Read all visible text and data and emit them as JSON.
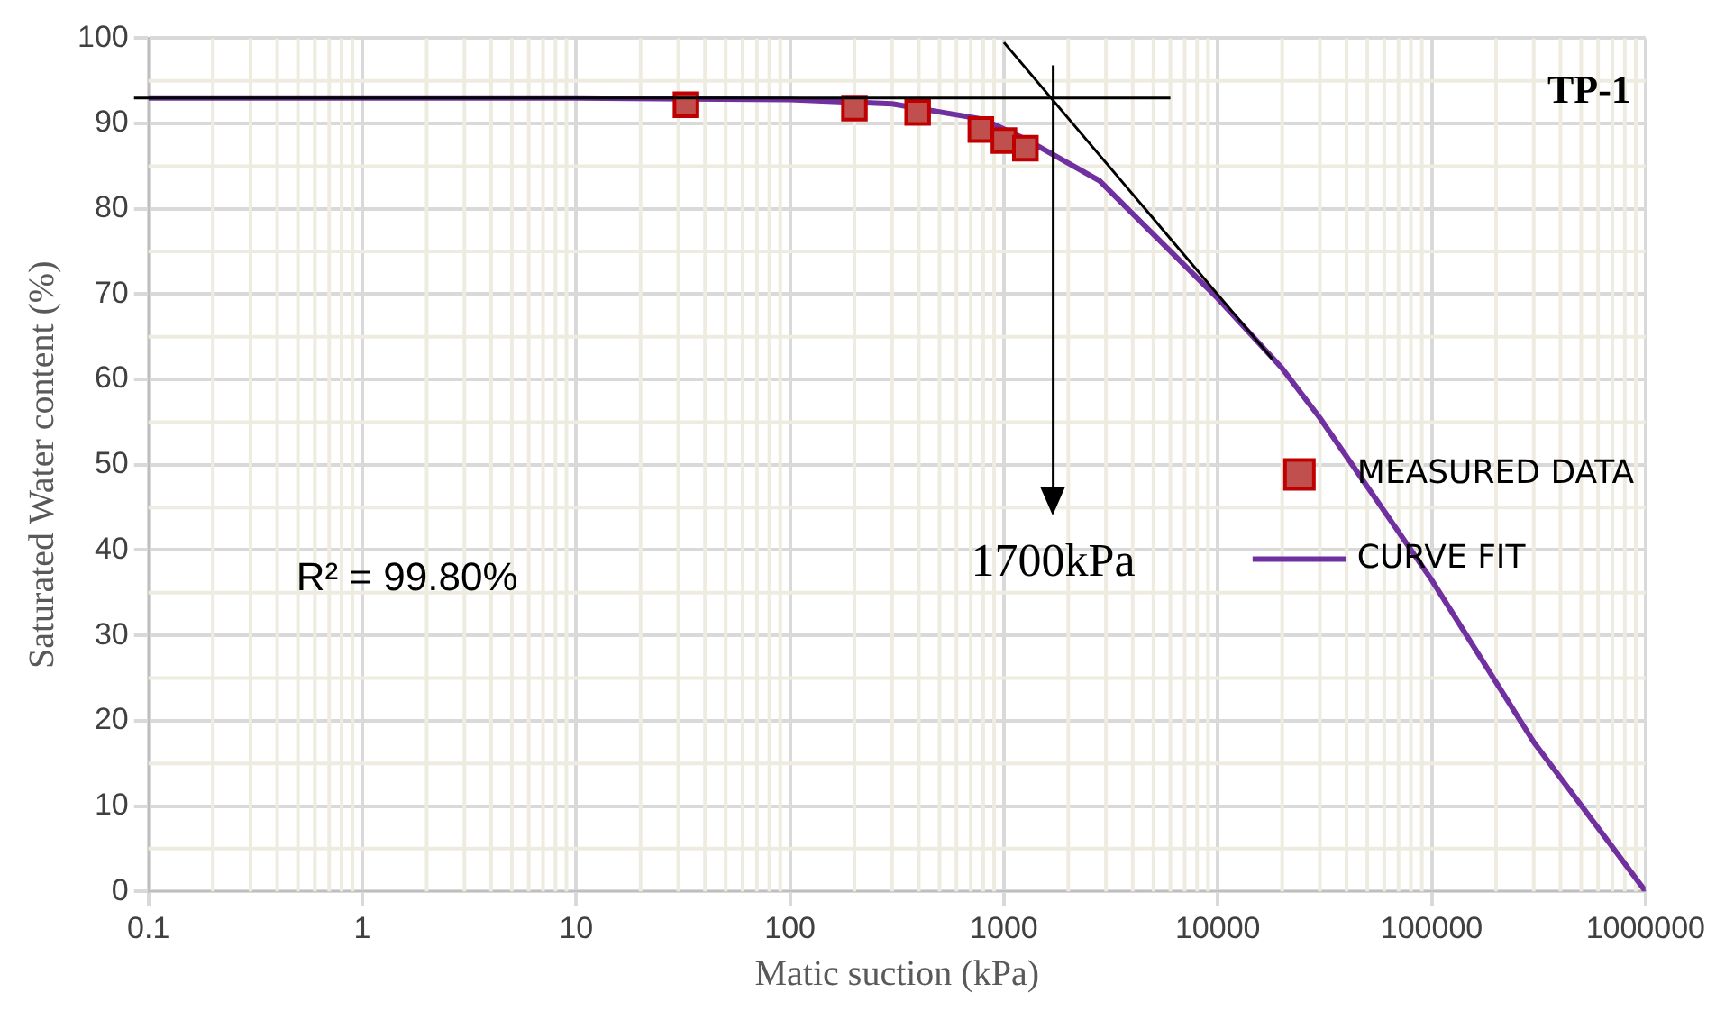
{
  "chart_data": {
    "type": "scatter",
    "xlabel": "Matic suction (kPa)",
    "ylabel": "Saturated Water content (%)",
    "log": "x",
    "xlim": [
      0.1,
      1000000
    ],
    "xticks": [
      0.1,
      1,
      10,
      100,
      1000,
      10000,
      100000,
      1000000
    ],
    "ylim": [
      0,
      100
    ],
    "yticks": [
      0,
      10,
      20,
      30,
      40,
      50,
      60,
      70,
      80,
      90,
      100
    ],
    "grid": true,
    "legend": "right",
    "series": [
      {
        "name": "MEASURED DATA",
        "marker": "square",
        "color": "#c0504d",
        "x": [
          32.6,
          200,
          395,
          780,
          1000,
          1260
        ],
        "values": [
          92.2,
          91.8,
          91.3,
          89.3,
          88,
          87.1
        ]
      },
      {
        "name": "CURVE FIT",
        "type": "line",
        "marker": "none",
        "color": "#7030a0",
        "x": [
          0.1,
          10,
          100,
          300,
          800,
          1300,
          2800,
          5000,
          10000,
          20000,
          30000,
          100000,
          300000,
          1000000
        ],
        "values": [
          93,
          93,
          92.8,
          92.3,
          90.5,
          88,
          83.3,
          77,
          69.5,
          61.3,
          55.5,
          36.5,
          17.5,
          0
        ]
      },
      {
        "type": "line",
        "marker": "none",
        "color": "#000000",
        "x": [
          1000,
          18000
        ],
        "values": [
          99.5,
          62.4
        ]
      }
    ],
    "ref_lines": [
      {
        "axis": "y",
        "value": 93,
        "color": "#000000"
      },
      {
        "axis": "x",
        "value": 1700,
        "label": "1700kPa",
        "color": "#000000"
      }
    ],
    "annotations": [
      "TP-1",
      "R² = 99.80%"
    ]
  }
}
